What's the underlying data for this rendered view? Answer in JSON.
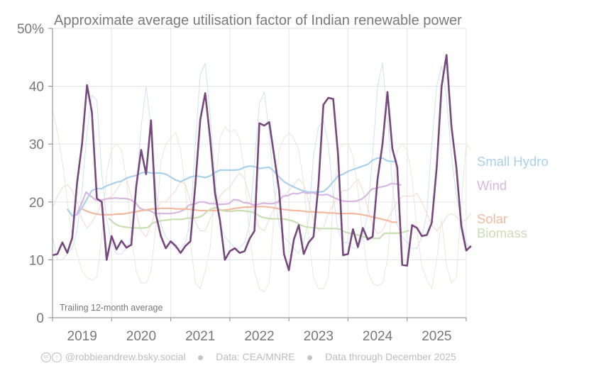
{
  "chart_data": {
    "type": "line",
    "title": "Approximate average utilisation factor of Indian renewable power",
    "xlabel": "",
    "ylabel": "",
    "ylim": [
      0,
      50
    ],
    "xlim": [
      2019.0,
      2026.0
    ],
    "yticks": [
      {
        "value": 0,
        "label": "0"
      },
      {
        "value": 10,
        "label": "10"
      },
      {
        "value": 20,
        "label": "20"
      },
      {
        "value": 30,
        "label": "30"
      },
      {
        "value": 40,
        "label": "40"
      },
      {
        "value": 50,
        "label": "50%"
      }
    ],
    "xticks": [
      "2019",
      "2020",
      "2021",
      "2022",
      "2023",
      "2024",
      "2025"
    ],
    "grid": true,
    "annotation": "Trailing 12-month average",
    "legend_placement": "right, direct labels",
    "series": [
      {
        "name": "Small Hydro",
        "kind": "trailing-12m",
        "color": "#a9d1ec",
        "start": 2019.25,
        "values": [
          18.8,
          17.6,
          17.8,
          19,
          20.5,
          22,
          22.3,
          22.3,
          22.8,
          23.1,
          23.4,
          23.6,
          24.1,
          24.4,
          24.6,
          25,
          25.2,
          25,
          25,
          25,
          24.8,
          24.3,
          23.8,
          23.5,
          23.9,
          24.3,
          24.5,
          24.4,
          24.2,
          24.5,
          25.1,
          25.5,
          25.5,
          25.5,
          25.5,
          25.6,
          26,
          26.2,
          26.1,
          25.8,
          25.9,
          26,
          25.3,
          24.3,
          23.5,
          23,
          22.6,
          22.2,
          21.9,
          21.7,
          21.7,
          21.7,
          21.8,
          22.5,
          23.5,
          24.5,
          24.8,
          25.3,
          25.6,
          25.9,
          26.2,
          26.5,
          27.2,
          27.6,
          27.6,
          27.1,
          27,
          27
        ]
      },
      {
        "name": "Wind",
        "kind": "trailing-12m",
        "color": "#d8b8e0",
        "start": 2019.4,
        "values": [
          17.7,
          19.5,
          21.7,
          21,
          20.3,
          20.3,
          20.5,
          20.6,
          20.7,
          20.6,
          20.6,
          20.4,
          19.9,
          18.9,
          18.6,
          18.5,
          18,
          18,
          18,
          18,
          18.1,
          18.3,
          18.7,
          19.5,
          19.6,
          20,
          20,
          19.7,
          19.7,
          19.6,
          19.6,
          19.7,
          20.4,
          20.3,
          19.9,
          19.8,
          19.5,
          19.6,
          19.8,
          19.7,
          19.7,
          20,
          21,
          21.1,
          21.5,
          21.4,
          21.7,
          21.5,
          21.6,
          21.3,
          21.2,
          21.3,
          20.9,
          20.5,
          20.2,
          20.1,
          20.1,
          20.2,
          20.5,
          21.2,
          22.2,
          22.4,
          22.6,
          22.8,
          23.2,
          23.1,
          22.9
        ]
      },
      {
        "name": "Solar",
        "kind": "trailing-12m",
        "color": "#f2b9a0",
        "start": 2019.5,
        "values": [
          18.8,
          18.4,
          18.1,
          17.9,
          17.8,
          17.8,
          17.8,
          17.9,
          17.9,
          18,
          18.2,
          18.3,
          18.5,
          18.6,
          18.8,
          18.8,
          18.9,
          18.9,
          18.9,
          18.8,
          18.8,
          18.8,
          18.7,
          18.6,
          18.5,
          18.5,
          18.5,
          18.5,
          18.6,
          18.6,
          18.7,
          18.9,
          19,
          19.1,
          19.1,
          19.2,
          19.2,
          19.2,
          19.1,
          19,
          18.8,
          18.7,
          18.6,
          18.5,
          18.5,
          18.4,
          18.3,
          18.3,
          18.2,
          18.2,
          18.1,
          18.1,
          18,
          18,
          18,
          18,
          17.9,
          17.8,
          17.6,
          17.4,
          17.2,
          17,
          16.8,
          16.5,
          16.5
        ]
      },
      {
        "name": "Biomass",
        "kind": "trailing-12m",
        "color": "#c8dfb4",
        "start": 2019.95,
        "values": [
          17.2,
          16.4,
          15.9,
          15.7,
          15.6,
          15.5,
          15.5,
          15.5,
          15.6,
          16.4,
          16.6,
          16.8,
          16.9,
          17,
          17,
          17,
          17.2,
          17.2,
          17.3,
          17.6,
          18.4,
          18.9,
          19,
          18.5,
          18.4,
          18.4,
          18.5,
          18.5,
          18.4,
          18.3,
          17.9,
          17.4,
          17.2,
          17.1,
          17.1,
          17.1,
          17,
          16.8,
          16.5,
          16,
          15.7,
          15.6,
          15.5,
          15.4,
          15.4,
          15.4,
          15.4,
          15.3,
          14.8,
          14.6,
          14.4,
          14.2,
          13.9,
          13.8,
          13.7,
          13.7,
          14.6,
          14.6,
          14.6,
          14.6,
          14.8,
          15.1
        ]
      },
      {
        "name": "Wind (monthly)",
        "kind": "monthly",
        "color": "#76487e",
        "start": 2019.0,
        "values": [
          10.8,
          11,
          13,
          11.2,
          13.8,
          23.4,
          30,
          40.2,
          35.5,
          20.6,
          20,
          10,
          14.1,
          11.8,
          13.3,
          12.1,
          12.6,
          22.7,
          29,
          24.8,
          34.1,
          17.8,
          14.1,
          12,
          13.2,
          12.4,
          11.2,
          12.4,
          13.2,
          23,
          34.2,
          38.8,
          31,
          21.5,
          16.8,
          10,
          11.5,
          12,
          11.2,
          11.5,
          13.6,
          15,
          33.6,
          33.2,
          33.8,
          28,
          22,
          11,
          8.2,
          13.5,
          16,
          11,
          13,
          14,
          23,
          36.8,
          38,
          37.8,
          28,
          10.8,
          11,
          15.3,
          12.2,
          15.5,
          13.5,
          14,
          24,
          30,
          39,
          29.2,
          26,
          9.1,
          9,
          16,
          15.5,
          14.1,
          14.3,
          16.4,
          26,
          40,
          45.4,
          33,
          26,
          15.8,
          11.6,
          12.4
        ]
      },
      {
        "name": "Small Hydro (monthly)",
        "kind": "monthly",
        "color": "#cfe2f0",
        "start": 2019.0,
        "values": [
          14,
          10,
          10,
          11,
          12,
          15,
          22,
          32,
          38.5,
          37.5,
          25,
          17,
          13,
          11,
          11,
          12,
          14,
          22,
          33,
          40,
          33,
          22,
          16,
          14,
          13,
          12,
          12,
          13,
          17,
          30,
          42,
          44,
          35,
          24,
          16,
          14,
          13,
          12,
          12,
          13,
          16,
          27,
          37,
          39,
          32,
          22,
          16,
          14,
          13,
          12,
          11,
          13,
          17,
          28,
          33,
          34,
          30,
          21,
          15,
          13,
          13,
          12,
          12,
          14,
          18,
          28,
          40,
          44,
          35,
          23,
          16,
          14,
          13,
          12,
          12,
          14,
          18,
          30,
          40,
          43.5,
          38,
          28,
          21,
          17,
          13,
          12
        ]
      },
      {
        "name": "Solar (monthly)",
        "kind": "monthly",
        "color": "#f6d6ca",
        "start": 2019.0,
        "values": [
          19,
          21,
          22.5,
          23,
          22,
          20,
          17,
          15.5,
          16.5,
          18,
          20,
          20.5,
          21,
          22,
          23.5,
          24,
          21,
          18,
          15,
          14,
          16,
          18.5,
          20,
          20,
          21,
          22,
          23.5,
          23,
          20,
          16.5,
          15,
          15,
          17,
          19,
          21,
          22,
          22.5,
          24,
          25,
          24,
          21,
          18,
          15.5,
          15,
          17,
          19,
          20.5,
          21,
          22,
          23,
          24,
          23,
          20,
          17,
          15,
          15.5,
          18,
          19.5,
          21,
          22,
          22,
          23,
          24,
          22,
          19,
          16,
          14.5,
          15,
          17,
          18.5,
          20,
          21,
          21,
          21,
          21.5,
          20,
          18,
          16,
          15,
          16,
          17.5,
          18,
          17.5,
          16.5,
          17,
          18
        ]
      },
      {
        "name": "Biomass (monthly)",
        "kind": "monthly",
        "color": "#e6e8d8",
        "start": 2019.0,
        "values": [
          36,
          32,
          27,
          20,
          14,
          11,
          8,
          7,
          6.5,
          7,
          14,
          25,
          29,
          30,
          29,
          24,
          14,
          8,
          6,
          6,
          8,
          16,
          27,
          30,
          31,
          32,
          29,
          22,
          13,
          6,
          5,
          8,
          12,
          22,
          31,
          33,
          32,
          32.5,
          31,
          25,
          14,
          8,
          5,
          4.5,
          6,
          18,
          29,
          31,
          32,
          31,
          29,
          23,
          14,
          7,
          5,
          5,
          7,
          20,
          29,
          30,
          30,
          28,
          22,
          14,
          8,
          6,
          5.5,
          6,
          10,
          20,
          29,
          30,
          29,
          24,
          15,
          9,
          6.5,
          5,
          10,
          17,
          9,
          6,
          7,
          20,
          30,
          29
        ]
      }
    ]
  },
  "footer": {
    "cc_icons": "cc-by-icons",
    "author": "@robbieandrew.bsky.social",
    "source": "Data: CEA/MNRE",
    "through": "Data through December 2025"
  }
}
